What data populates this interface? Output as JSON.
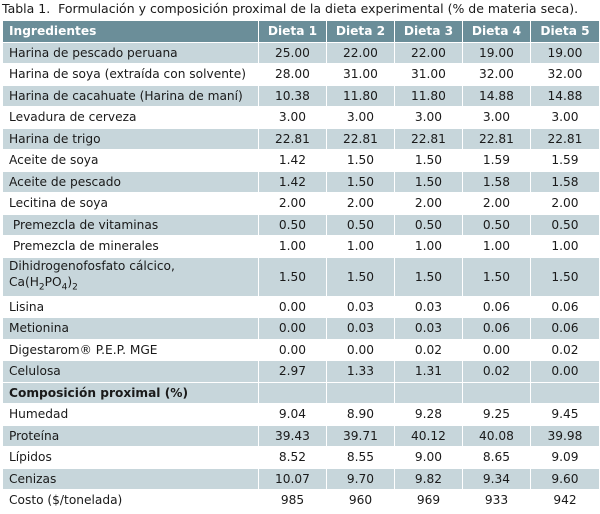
{
  "caption": {
    "prefix": "Tabla 1.",
    "text": "Formulación y composición proximal de la dieta experimental (% de materia seca)."
  },
  "headers": [
    "Ingredientes",
    "Dieta 1",
    "Dieta 2",
    "Dieta 3",
    "Dieta 4",
    "Dieta 5"
  ],
  "rows": [
    {
      "label": "Harina de pescado peruana",
      "values": [
        "25.00",
        "22.00",
        "22.00",
        "19.00",
        "19.00"
      ]
    },
    {
      "label": "Harina de soya (extraída con solvente)",
      "values": [
        "28.00",
        "31.00",
        "31.00",
        "32.00",
        "32.00"
      ]
    },
    {
      "label": "Harina de cacahuate (Harina de maní)",
      "values": [
        "10.38",
        "11.80",
        "11.80",
        "14.88",
        "14.88"
      ]
    },
    {
      "label": "Levadura de cerveza",
      "values": [
        "3.00",
        "3.00",
        "3.00",
        "3.00",
        "3.00"
      ]
    },
    {
      "label": "Harina de trigo",
      "values": [
        "22.81",
        "22.81",
        "22.81",
        "22.81",
        "22.81"
      ]
    },
    {
      "label": "Aceite de soya",
      "values": [
        "1.42",
        "1.50",
        "1.50",
        "1.59",
        "1.59"
      ]
    },
    {
      "label": "Aceite de pescado",
      "values": [
        "1.42",
        "1.50",
        "1.50",
        "1.58",
        "1.58"
      ]
    },
    {
      "label": "Lecitina de soya",
      "values": [
        "2.00",
        "2.00",
        "2.00",
        "2.00",
        "2.00"
      ]
    },
    {
      "label": " Premezcla de vitaminas",
      "values": [
        "0.50",
        "0.50",
        "0.50",
        "0.50",
        "0.50"
      ]
    },
    {
      "label": " Premezcla de minerales",
      "values": [
        "1.00",
        "1.00",
        "1.00",
        "1.00",
        "1.00"
      ]
    },
    {
      "label_line1": "Dihidrogenofosfato cálcico,",
      "label_formula": [
        "Ca(H",
        "2",
        "PO",
        "4",
        ")",
        "2"
      ],
      "values": [
        "1.50",
        "1.50",
        "1.50",
        "1.50",
        "1.50"
      ]
    },
    {
      "label": "Lisina",
      "values": [
        "0.00",
        "0.03",
        "0.03",
        "0.06",
        "0.06"
      ]
    },
    {
      "label": "Metionina",
      "values": [
        "0.00",
        "0.03",
        "0.03",
        "0.06",
        "0.06"
      ]
    },
    {
      "label": "Digestarom® P.E.P. MGE",
      "values": [
        "0.00",
        "0.00",
        "0.02",
        "0.00",
        "0.02"
      ]
    },
    {
      "label": "Celulosa",
      "values": [
        "2.97",
        "1.33",
        "1.31",
        "0.02",
        "0.00"
      ]
    }
  ],
  "section": "Composición proximal (%)",
  "proximal": [
    {
      "label": "Humedad",
      "values": [
        "9.04",
        "8.90",
        "9.28",
        "9.25",
        "9.45"
      ]
    },
    {
      "label": "Proteína",
      "values": [
        "39.43",
        "39.71",
        "40.12",
        "40.08",
        "39.98"
      ]
    },
    {
      "label": "Lípidos",
      "values": [
        "8.52",
        "8.55",
        "9.00",
        "8.65",
        "9.09"
      ]
    },
    {
      "label": "Cenizas",
      "values": [
        "10.07",
        "9.70",
        "9.82",
        "9.34",
        "9.60"
      ]
    },
    {
      "label": "Costo ($/tonelada)",
      "values": [
        "985",
        "960",
        "969",
        "933",
        "942"
      ]
    }
  ]
}
